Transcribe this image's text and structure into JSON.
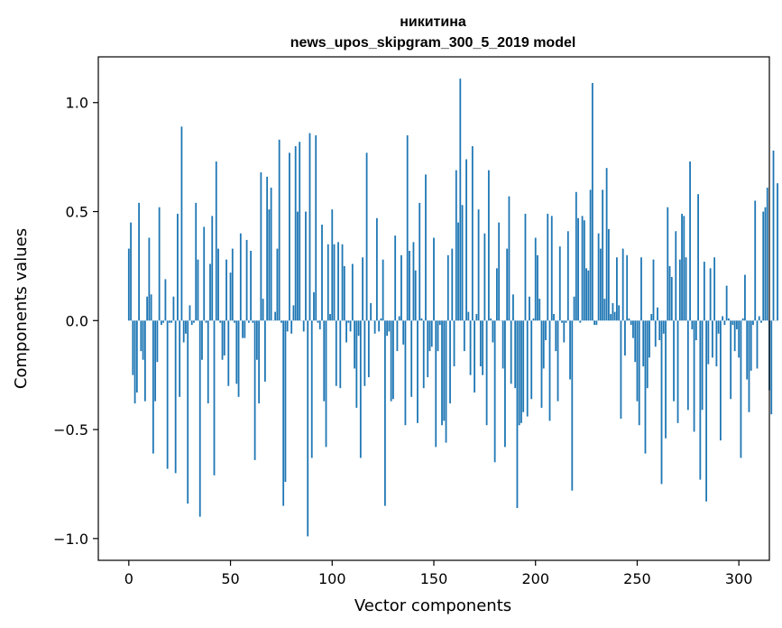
{
  "chart_data": {
    "type": "bar",
    "title": "никитина",
    "subtitle": "news_upos_skipgram_300_5_2019 model",
    "xlabel": "Vector components",
    "ylabel": "Components values",
    "xlim": [
      -15,
      315
    ],
    "ylim": [
      -1.1,
      1.21
    ],
    "xticks": [
      0,
      50,
      100,
      150,
      200,
      250,
      300
    ],
    "yticks": [
      -1.0,
      -0.5,
      0.0,
      0.5,
      1.0
    ],
    "xtick_labels": [
      "0",
      "50",
      "100",
      "150",
      "200",
      "250",
      "300"
    ],
    "ytick_labels": [
      "−1.0",
      "−0.5",
      "0.0",
      "0.5",
      "1.0"
    ],
    "grid": false,
    "bar_color": "#1f77b4",
    "values": [
      0.33,
      0.45,
      -0.25,
      -0.38,
      -0.33,
      0.54,
      -0.14,
      -0.18,
      -0.37,
      0.11,
      0.38,
      0.12,
      -0.61,
      -0.37,
      -0.19,
      0.52,
      -0.02,
      -0.01,
      0.19,
      -0.68,
      -0.01,
      -0.01,
      0.11,
      -0.7,
      0.49,
      -0.35,
      0.89,
      -0.1,
      -0.06,
      -0.84,
      0.07,
      -0.02,
      -0.01,
      0.54,
      0.28,
      -0.9,
      -0.18,
      0.43,
      -0.01,
      -0.38,
      0.26,
      0.48,
      -0.71,
      0.73,
      0.33,
      -0.01,
      -0.18,
      -0.16,
      0.28,
      -0.3,
      0.22,
      0.33,
      -0.01,
      -0.29,
      -0.35,
      0.4,
      -0.08,
      -0.08,
      0.37,
      -0.01,
      0.32,
      -0.01,
      -0.64,
      -0.18,
      -0.38,
      0.68,
      0.1,
      -0.28,
      0.66,
      0.51,
      0.61,
      0.0,
      0.04,
      0.33,
      0.83,
      -0.01,
      -0.85,
      -0.74,
      -0.05,
      0.77,
      -0.06,
      0.07,
      0.8,
      0.5,
      0.82,
      0.0,
      -0.05,
      0.5,
      -0.99,
      0.86,
      -0.63,
      0.13,
      0.85,
      -0.01,
      -0.04,
      0.44,
      -0.37,
      -0.58,
      0.35,
      0.03,
      0.51,
      0.35,
      -0.3,
      0.36,
      -0.31,
      0.35,
      0.25,
      -0.1,
      -0.01,
      -0.05,
      0.26,
      -0.22,
      -0.4,
      -0.07,
      -0.63,
      0.29,
      -0.3,
      0.77,
      -0.26,
      0.08,
      0.0,
      -0.06,
      0.47,
      -0.05,
      0.01,
      0.28,
      -0.85,
      -0.07,
      -0.05,
      -0.37,
      -0.36,
      0.39,
      -0.14,
      0.02,
      0.3,
      -0.11,
      -0.48,
      0.85,
      0.32,
      -0.35,
      0.36,
      0.23,
      -0.47,
      0.54,
      0.01,
      -0.31,
      0.67,
      -0.26,
      -0.14,
      -0.12,
      0.38,
      -0.58,
      -0.14,
      -0.02,
      -0.48,
      -0.46,
      -0.56,
      0.3,
      -0.38,
      0.33,
      -0.21,
      0.69,
      0.45,
      1.11,
      0.53,
      -0.14,
      0.74,
      0.04,
      -0.25,
      0.8,
      -0.33,
      0.03,
      0.51,
      -0.21,
      -0.25,
      0.4,
      -0.48,
      0.69,
      0.01,
      -0.1,
      -0.65,
      0.24,
      0.45,
      0.0,
      -0.22,
      -0.58,
      0.33,
      0.57,
      -0.29,
      0.12,
      -0.31,
      -0.86,
      -0.48,
      -0.47,
      -0.42,
      0.49,
      -0.44,
      0.11,
      -0.36,
      0.01,
      0.38,
      0.3,
      0.1,
      -0.4,
      -0.22,
      -0.09,
      0.49,
      -0.46,
      0.48,
      0.03,
      -0.14,
      -0.37,
      0.34,
      -0.01,
      -0.1,
      -0.01,
      0.41,
      -0.27,
      -0.78,
      0.11,
      0.59,
      0.47,
      -0.01,
      0.48,
      0.46,
      0.24,
      0.23,
      0.6,
      1.09,
      -0.02,
      -0.02,
      0.4,
      0.33,
      0.6,
      0.1,
      0.7,
      0.42,
      0.03,
      0.08,
      0.04,
      0.29,
      0.07,
      -0.45,
      0.33,
      -0.16,
      0.3,
      0.01,
      -0.02,
      -0.08,
      -0.19,
      -0.37,
      -0.48,
      0.29,
      -0.21,
      -0.61,
      -0.31,
      -0.17,
      0.03,
      0.28,
      -0.12,
      0.06,
      -0.09,
      -0.75,
      -0.06,
      -0.54,
      0.52,
      0.25,
      0.2,
      -0.37,
      0.41,
      -0.47,
      0.28,
      0.49,
      0.48,
      0.29,
      -0.41,
      0.73,
      -0.04,
      -0.51,
      -0.09,
      0.58,
      -0.73,
      -0.41,
      0.27,
      -0.83,
      -0.2,
      0.24,
      -0.17,
      0.29,
      -0.21,
      -0.06,
      -0.55,
      0.02,
      -0.02,
      0.16,
      0.01,
      -0.36,
      -0.02,
      -0.14,
      -0.04,
      -0.17,
      -0.63,
      0.01,
      0.21,
      -0.27,
      -0.42,
      -0.23,
      -0.02,
      0.55,
      -0.22,
      0.02,
      -0.01,
      0.5,
      0.52,
      0.61,
      -0.32,
      -0.43,
      0.78,
      0.0,
      0.63
    ]
  }
}
